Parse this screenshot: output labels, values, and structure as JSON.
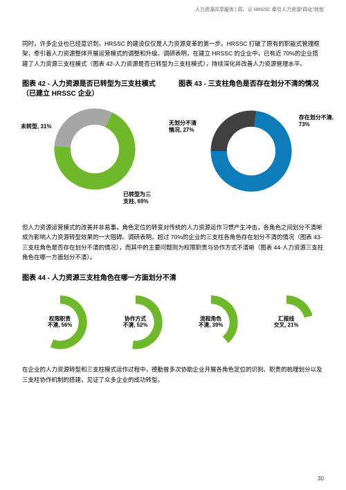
{
  "header": "人力资源共享服务 | 四、以 HRSSC 牵引人力资源\"四化\"转型",
  "page_number": "30",
  "para1": "同时，许多企业也已经意识到，HRSSC 的建设仅仅是人力资源变革的第一步。HRSSC 打破了原有的职能式管理框架，牵引着人力资源整体开展运营模式的调整和升级。调研表明，在建立 HRSSC 的企业中，已有近 70%的企业搭建了人力资源三支柱模式（图表 42-人力资源是否已转型为三支柱模式），持续深化并改善人力资源管理水平。",
  "chart42": {
    "title_l1": "图表 42 - 人力资源是否已转型为三支柱模式",
    "title_l2": "（已建立 HRSSC 企业）",
    "slice1": {
      "label_l1": "未转型,",
      "label_l2": "31%",
      "pct": 31,
      "color": "#a6a6a6"
    },
    "slice2": {
      "label_l1": "已转型为三",
      "label_l2": "支柱, 69%",
      "pct": 69,
      "color": "#6fb72b"
    }
  },
  "chart43": {
    "title": "图表 43 - 三支柱角色是否存在划分不清的情况",
    "slice1": {
      "label_l1": "无划分不清",
      "label_l2": "情况, 27%",
      "pct": 27,
      "color": "#404040"
    },
    "slice2": {
      "label_l1": "存在划分不清,",
      "label_l2": "73%",
      "pct": 73,
      "color": "#0e7cb8"
    }
  },
  "para2": "但人力资源运营模式的改善并非易事，角色定位的转变对传统的人力资源运作习惯产生冲击，各角色之间划分不清晰成为影响人力资源转型效果的一大阻碍。调研表明，超过 70%的企业的三支柱各角色存在划分不清的情况（图表 43-三支柱角色是否存在划分不清的情况），而其中的主要问题则为权限职责与协作方式不清晰（图表 44-人力资源三支柱角色在哪一方面划分不清）。",
  "chart44": {
    "title": "图表 44 - 人力资源三支柱角色在哪一方面划分不清",
    "item1": {
      "label_l1": "权限职责",
      "label_l2": "不清, 56%",
      "pct": 56
    },
    "item2": {
      "label_l1": "协作方式",
      "label_l2": "不清, 52%",
      "pct": 52
    },
    "item3": {
      "label_l1": "流程角色",
      "label_l2": "不清, 39%",
      "pct": 39
    },
    "item4": {
      "label_l1": "汇报线",
      "label_l2": "交叉, 21%",
      "pct": 21
    },
    "fill_color": "#6fb72b",
    "track_color": "#d9d9d9"
  },
  "para3": "在企业的人力资源转型和三支柱模式运作过程中，德勤曾多次协助企业开展各角色定位的识别、职责的梳理划分以及三支柱协作机制的搭建，见证了众多企业的成功转型。"
}
